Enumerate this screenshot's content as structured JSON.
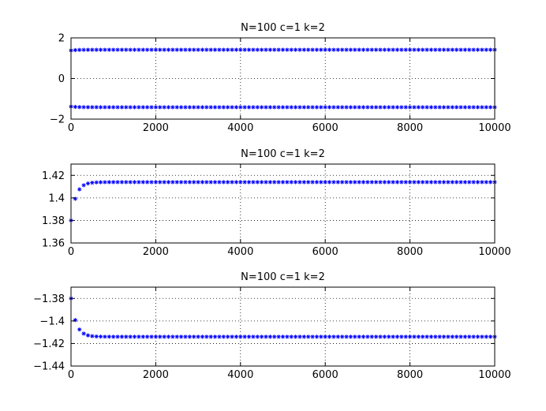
{
  "chart_data": [
    {
      "type": "scatter",
      "title": "N=100   c=1   k=2",
      "xlabel": "",
      "ylabel": "",
      "xlim": [
        0,
        10000
      ],
      "ylim": [
        -2,
        2
      ],
      "xticks": [
        0,
        2000,
        4000,
        6000,
        8000,
        10000
      ],
      "yticks": [
        2,
        0,
        -2
      ],
      "grid": true,
      "marker": "*",
      "color": "#0000ff",
      "series": [
        {
          "x_start": 0,
          "x_step": 100,
          "count": 101,
          "initial": 1.38,
          "final": 1.414,
          "tau": 12
        },
        {
          "x_start": 0,
          "x_step": 100,
          "count": 101,
          "initial": -1.38,
          "final": -1.414,
          "tau": 12
        }
      ]
    },
    {
      "type": "scatter",
      "title": "N=100   c=1   k=2",
      "xlabel": "",
      "ylabel": "",
      "xlim": [
        0,
        10000
      ],
      "ylim": [
        1.36,
        1.43
      ],
      "xticks": [
        0,
        2000,
        4000,
        6000,
        8000,
        10000
      ],
      "yticks": [
        1.42,
        1.4,
        1.38,
        1.36
      ],
      "grid": true,
      "marker": "*",
      "color": "#0000ff",
      "series": [
        {
          "x_start": 0,
          "x_step": 100,
          "count": 101,
          "initial": 1.38,
          "final": 1.414,
          "tau": 12
        }
      ]
    },
    {
      "type": "scatter",
      "title": "N=100   c=1   k=2",
      "xlabel": "",
      "ylabel": "",
      "xlim": [
        0,
        10000
      ],
      "ylim": [
        -1.44,
        -1.37
      ],
      "xticks": [
        0,
        2000,
        4000,
        6000,
        8000,
        10000
      ],
      "yticks": [
        -1.38,
        -1.4,
        -1.42,
        -1.44
      ],
      "grid": true,
      "marker": "*",
      "color": "#0000ff",
      "series": [
        {
          "x_start": 0,
          "x_step": 100,
          "count": 101,
          "initial": -1.38,
          "final": -1.414,
          "tau": 12
        }
      ]
    }
  ]
}
